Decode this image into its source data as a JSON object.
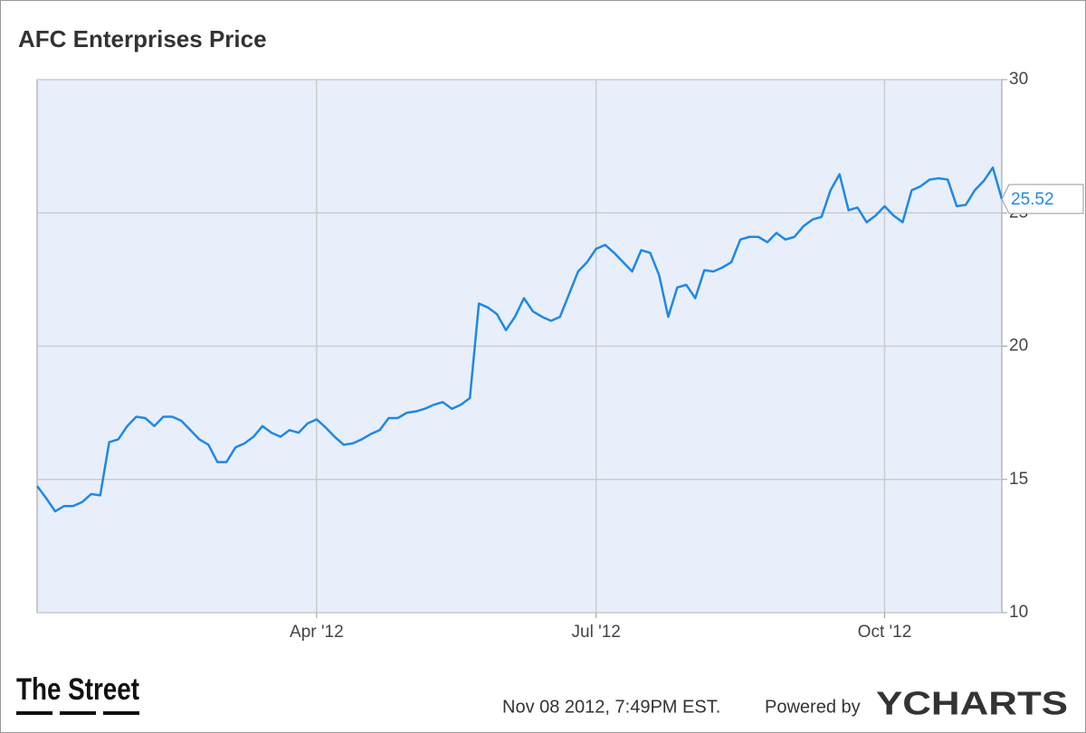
{
  "chart_data": {
    "type": "line",
    "title": "AFC Enterprises Price",
    "categories": [
      null,
      null,
      null,
      null,
      null,
      null,
      null,
      null,
      null,
      null,
      null,
      null,
      null,
      null,
      null,
      null,
      null,
      null,
      null,
      null,
      null,
      null,
      null,
      null,
      null,
      null,
      null,
      null,
      null,
      null,
      null,
      "Apr '12",
      null,
      null,
      null,
      null,
      null,
      null,
      null,
      null,
      null,
      null,
      null,
      null,
      null,
      null,
      null,
      null,
      null,
      null,
      null,
      null,
      null,
      null,
      null,
      null,
      null,
      null,
      null,
      null,
      null,
      null,
      "Jul '12",
      null,
      null,
      null,
      null,
      null,
      null,
      null,
      null,
      null,
      null,
      null,
      null,
      null,
      null,
      null,
      null,
      null,
      null,
      null,
      null,
      null,
      null,
      null,
      null,
      null,
      null,
      null,
      null,
      null,
      null,
      null,
      "Oct '12",
      null,
      null,
      null,
      null,
      null,
      null,
      null,
      null,
      null,
      null,
      null,
      null,
      null
    ],
    "series": [
      {
        "name": "AFC Enterprises Price",
        "color": "#1f88e5",
        "values": [
          14.75,
          14.3,
          13.8,
          14.0,
          14.0,
          14.15,
          14.45,
          14.4,
          16.4,
          16.5,
          17.0,
          17.35,
          17.3,
          17.0,
          17.35,
          17.35,
          17.2,
          16.85,
          16.5,
          16.3,
          15.65,
          15.65,
          16.2,
          16.35,
          16.6,
          17.0,
          16.75,
          16.6,
          16.85,
          16.75,
          17.1,
          17.25,
          16.95,
          16.6,
          16.3,
          16.35,
          16.5,
          16.7,
          16.85,
          17.3,
          17.3,
          17.5,
          17.55,
          17.65,
          17.8,
          17.9,
          17.65,
          17.8,
          18.05,
          21.6,
          21.45,
          21.2,
          20.6,
          21.1,
          21.8,
          21.3,
          21.1,
          20.95,
          21.1,
          21.95,
          22.8,
          23.15,
          23.65,
          23.8,
          23.5,
          23.15,
          22.8,
          23.6,
          23.5,
          22.65,
          21.1,
          22.2,
          22.3,
          21.8,
          22.85,
          22.8,
          22.95,
          23.15,
          24.0,
          24.1,
          24.1,
          23.9,
          24.25,
          24.0,
          24.1,
          24.5,
          24.75,
          24.85,
          25.85,
          26.45,
          25.1,
          25.2,
          24.65,
          24.9,
          25.25,
          24.9,
          24.65,
          25.85,
          26.0,
          26.25,
          26.3,
          26.25,
          25.25,
          25.3,
          25.85,
          26.2,
          26.7,
          25.52
        ]
      }
    ],
    "ylim": [
      10,
      30
    ],
    "yticks": [
      10,
      15,
      20,
      25,
      30
    ],
    "grid": true
  },
  "footer": {
    "source_logo": "The Street",
    "timestamp": "Nov 08 2012, 7:49PM EST.",
    "powered_by": "Powered by",
    "brand": "YCHARTS"
  }
}
